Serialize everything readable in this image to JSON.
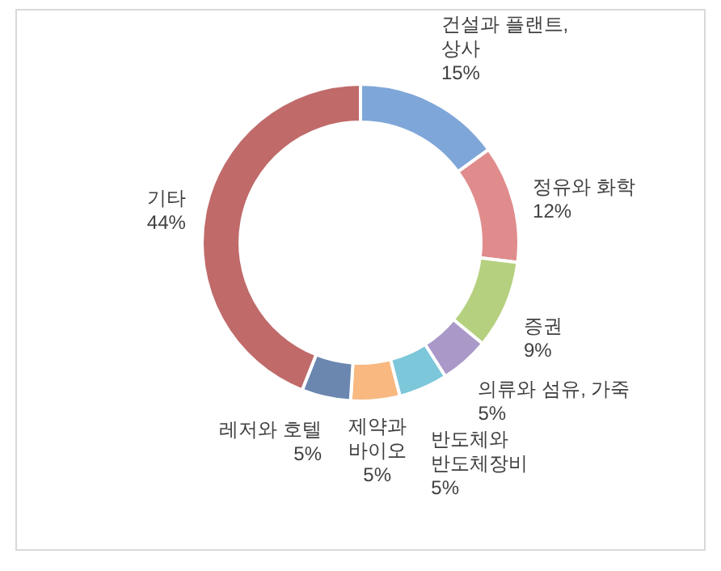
{
  "chart_data": {
    "type": "donut",
    "categories": [
      "건설과 플랜트, 상사",
      "정유와 화학",
      "증권",
      "의류와 섬유, 가죽",
      "반도체와 반도체장비",
      "제약과 바이오",
      "레저와 호텔",
      "기타"
    ],
    "values": [
      15,
      12,
      9,
      5,
      5,
      5,
      5,
      44
    ],
    "value_labels": [
      "15%",
      "12%",
      "9%",
      "5%",
      "5%",
      "5%",
      "5%",
      "44%"
    ],
    "colors": [
      "#7fa6d8",
      "#e08c8c",
      "#b5d07f",
      "#a998c8",
      "#7cc7d9",
      "#f8b880",
      "#6b87b0",
      "#c06a6a"
    ]
  }
}
